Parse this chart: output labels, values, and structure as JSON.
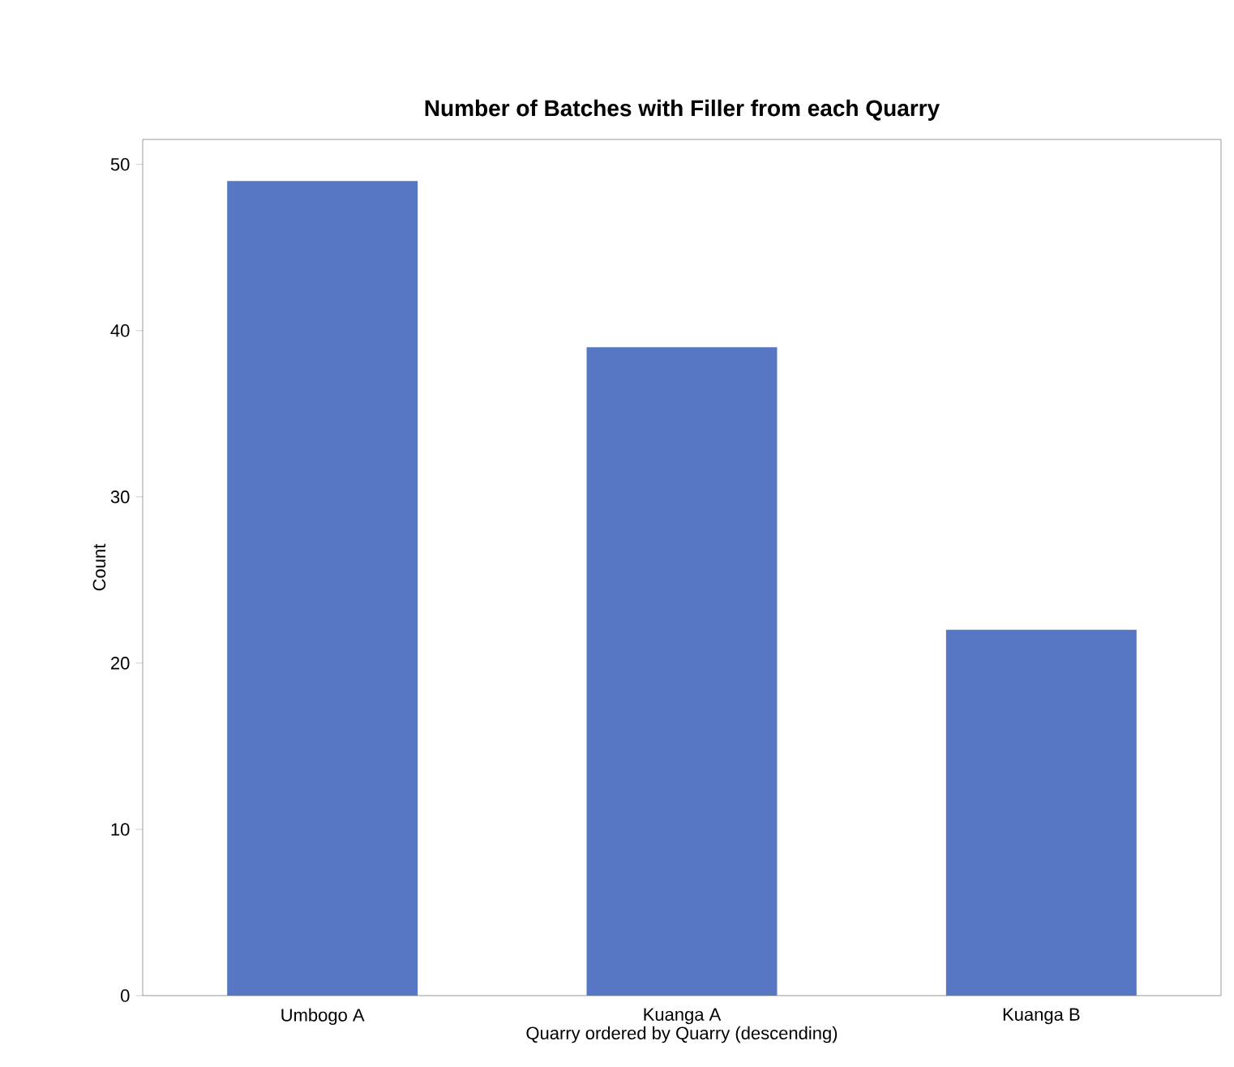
{
  "chart_data": {
    "type": "bar",
    "title": "Number of Batches with Filler from each Quarry",
    "xlabel": "Quarry ordered by Quarry (descending)",
    "ylabel": "Count",
    "categories": [
      "Umbogo A",
      "Kuanga A",
      "Kuanga B"
    ],
    "values": [
      49,
      39,
      22
    ],
    "color": "#5777c5",
    "ylim": [
      0,
      51.5
    ],
    "yticks": [
      0,
      10,
      20,
      30,
      40,
      50
    ],
    "grid": false
  }
}
